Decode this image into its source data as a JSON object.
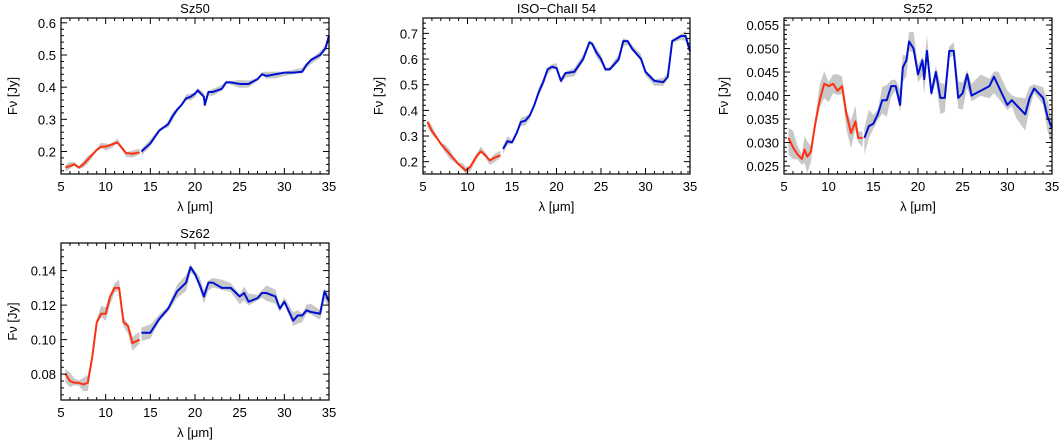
{
  "chart_data": [
    {
      "type": "line",
      "title": "Sz50",
      "xlabel": "λ [μm]",
      "ylabel": "Fν [Jy]",
      "xlim": [
        5,
        35
      ],
      "ylim": [
        0.13,
        0.615
      ],
      "xticks": [
        5,
        10,
        15,
        20,
        25,
        30,
        35
      ],
      "xtick_labels": [
        "5",
        "10",
        "15",
        "20",
        "25",
        "30",
        "35"
      ],
      "yticks": [
        0.2,
        0.3,
        0.4,
        0.5,
        0.6
      ],
      "ytick_labels": [
        "0.2",
        "0.3",
        "0.4",
        "0.5",
        "0.6"
      ],
      "band_halfwidth": 0.008,
      "series": [
        {
          "color": "#ff3010",
          "x": [
            5.5,
            6,
            6.5,
            7,
            7.5,
            8,
            8.5,
            9,
            9.5,
            10,
            10.5,
            11,
            11.3,
            11.7,
            12.3,
            13,
            13.8
          ],
          "y": [
            0.15,
            0.155,
            0.16,
            0.15,
            0.16,
            0.175,
            0.19,
            0.205,
            0.215,
            0.215,
            0.22,
            0.225,
            0.228,
            0.215,
            0.195,
            0.193,
            0.197
          ]
        },
        {
          "color": "#0010d0",
          "x": [
            14,
            15,
            16,
            16.5,
            17,
            17.5,
            18,
            18.5,
            19,
            19.5,
            20,
            20.3,
            21,
            21.1,
            21.5,
            22,
            23,
            23.5,
            24,
            25,
            26,
            27,
            27.5,
            28,
            29,
            30,
            31,
            32,
            32.5,
            33,
            34,
            34.6,
            35
          ],
          "y": [
            0.2,
            0.225,
            0.265,
            0.275,
            0.285,
            0.31,
            0.33,
            0.345,
            0.365,
            0.37,
            0.38,
            0.39,
            0.37,
            0.345,
            0.385,
            0.385,
            0.395,
            0.415,
            0.415,
            0.41,
            0.41,
            0.425,
            0.44,
            0.435,
            0.44,
            0.445,
            0.445,
            0.448,
            0.47,
            0.485,
            0.5,
            0.52,
            0.56
          ]
        }
      ]
    },
    {
      "type": "line",
      "title": "ISO−ChaII 54",
      "xlabel": "λ [μm]",
      "ylabel": "Fν [Jy]",
      "xlim": [
        5,
        35
      ],
      "ylim": [
        0.152,
        0.76
      ],
      "xticks": [
        5,
        10,
        15,
        20,
        25,
        30,
        35
      ],
      "xtick_labels": [
        "5",
        "10",
        "15",
        "20",
        "25",
        "30",
        "35"
      ],
      "yticks": [
        0.2,
        0.3,
        0.4,
        0.5,
        0.6,
        0.7
      ],
      "ytick_labels": [
        "0.2",
        "0.3",
        "0.4",
        "0.5",
        "0.6",
        "0.7"
      ],
      "band_halfwidth": 0.012,
      "series": [
        {
          "color": "#ff3010",
          "x": [
            5.5,
            6,
            6.5,
            7,
            7.5,
            8,
            8.5,
            9,
            9.5,
            9.8,
            10.3,
            11,
            11.5,
            12,
            12.5,
            13,
            13.7
          ],
          "y": [
            0.355,
            0.32,
            0.295,
            0.27,
            0.25,
            0.23,
            0.21,
            0.19,
            0.175,
            0.165,
            0.18,
            0.22,
            0.24,
            0.225,
            0.205,
            0.215,
            0.225
          ]
        },
        {
          "color": "#0010d0",
          "x": [
            14,
            14.5,
            15,
            15.5,
            16,
            16.5,
            17,
            17.5,
            18,
            18.5,
            19,
            19.5,
            20,
            20.5,
            21,
            22,
            23,
            23.7,
            24,
            24.5,
            25,
            25.5,
            26,
            27,
            27.5,
            28,
            28.5,
            29.5,
            30,
            31,
            32,
            32.5,
            33,
            34,
            34.5,
            35
          ],
          "y": [
            0.25,
            0.28,
            0.275,
            0.31,
            0.355,
            0.36,
            0.38,
            0.42,
            0.47,
            0.51,
            0.56,
            0.57,
            0.565,
            0.515,
            0.545,
            0.55,
            0.6,
            0.665,
            0.66,
            0.625,
            0.6,
            0.56,
            0.56,
            0.6,
            0.67,
            0.67,
            0.64,
            0.6,
            0.55,
            0.515,
            0.51,
            0.53,
            0.67,
            0.69,
            0.69,
            0.63
          ]
        }
      ]
    },
    {
      "type": "line",
      "title": "Sz52",
      "xlabel": "λ [μm]",
      "ylabel": "Fν [Jy]",
      "xlim": [
        5,
        35
      ],
      "ylim": [
        0.0233,
        0.0565
      ],
      "xticks": [
        5,
        10,
        15,
        20,
        25,
        30,
        35
      ],
      "xtick_labels": [
        "5",
        "10",
        "15",
        "20",
        "25",
        "30",
        "35"
      ],
      "yticks": [
        0.025,
        0.03,
        0.035,
        0.04,
        0.045,
        0.05,
        0.055
      ],
      "ytick_labels": [
        "0.025",
        "0.030",
        "0.035",
        "0.040",
        "0.045",
        "0.050",
        "0.055"
      ],
      "band_halfwidth": 0.0022,
      "series": [
        {
          "color": "#ff3010",
          "x": [
            5.5,
            6,
            6.5,
            7,
            7.3,
            7.6,
            8,
            8.5,
            9,
            9.5,
            10,
            10.5,
            11,
            11.5,
            12,
            12.5,
            13,
            13.3,
            13.8
          ],
          "y": [
            0.031,
            0.029,
            0.0275,
            0.0265,
            0.0285,
            0.027,
            0.028,
            0.034,
            0.039,
            0.0425,
            0.042,
            0.0425,
            0.041,
            0.042,
            0.036,
            0.032,
            0.0345,
            0.031,
            0.031
          ]
        },
        {
          "color": "#0010d0",
          "x": [
            14,
            14.5,
            15,
            15.5,
            16,
            16.5,
            17,
            17.5,
            18,
            18.3,
            18.7,
            19,
            19.5,
            20,
            20.5,
            20.7,
            21,
            21.5,
            22,
            22.5,
            23,
            23.5,
            24,
            24.5,
            25,
            25.5,
            26,
            27,
            28,
            28.5,
            29,
            30,
            30.5,
            31,
            32,
            32.5,
            33,
            34,
            34.5,
            35
          ],
          "y": [
            0.031,
            0.0335,
            0.034,
            0.036,
            0.039,
            0.039,
            0.042,
            0.042,
            0.038,
            0.046,
            0.0475,
            0.0515,
            0.05,
            0.0445,
            0.0475,
            0.0435,
            0.0495,
            0.0405,
            0.045,
            0.0395,
            0.0395,
            0.0495,
            0.0495,
            0.0395,
            0.0405,
            0.0445,
            0.04,
            0.041,
            0.042,
            0.044,
            0.042,
            0.038,
            0.039,
            0.038,
            0.036,
            0.0395,
            0.0415,
            0.0395,
            0.0355,
            0.033
          ]
        }
      ]
    },
    {
      "type": "line",
      "title": "Sz62",
      "xlabel": "λ [μm]",
      "ylabel": "Fν [Jy]",
      "xlim": [
        5,
        35
      ],
      "ylim": [
        0.065,
        0.156
      ],
      "xticks": [
        5,
        10,
        15,
        20,
        25,
        30,
        35
      ],
      "xtick_labels": [
        "5",
        "10",
        "15",
        "20",
        "25",
        "30",
        "35"
      ],
      "yticks": [
        0.08,
        0.1,
        0.12,
        0.14
      ],
      "ytick_labels": [
        "0.08",
        "0.10",
        "0.12",
        "0.14"
      ],
      "band_halfwidth": 0.003,
      "series": [
        {
          "color": "#ff3010",
          "x": [
            5.5,
            6,
            6.5,
            7,
            7.5,
            8,
            8.5,
            9,
            9.5,
            10,
            10.5,
            11,
            11.5,
            12,
            12.5,
            13,
            13.8
          ],
          "y": [
            0.08,
            0.076,
            0.075,
            0.075,
            0.074,
            0.075,
            0.09,
            0.11,
            0.115,
            0.115,
            0.125,
            0.13,
            0.13,
            0.11,
            0.108,
            0.098,
            0.1
          ]
        },
        {
          "color": "#0010d0",
          "x": [
            14,
            15,
            16,
            17,
            18,
            19,
            19.5,
            20,
            20.5,
            21,
            21.5,
            22,
            23,
            24,
            25,
            25.5,
            26,
            27,
            27.5,
            28,
            29,
            29.5,
            30,
            31,
            31.5,
            32,
            32.5,
            33,
            34,
            34.5,
            35
          ],
          "y": [
            0.104,
            0.104,
            0.112,
            0.118,
            0.128,
            0.133,
            0.142,
            0.138,
            0.132,
            0.125,
            0.133,
            0.133,
            0.13,
            0.13,
            0.125,
            0.127,
            0.122,
            0.124,
            0.127,
            0.127,
            0.125,
            0.118,
            0.122,
            0.111,
            0.114,
            0.114,
            0.117,
            0.116,
            0.115,
            0.128,
            0.122
          ]
        }
      ]
    }
  ],
  "colors": {
    "band": "#c8c8c8",
    "short_wavelength": "#ff3010",
    "long_wavelength": "#0010d0"
  }
}
